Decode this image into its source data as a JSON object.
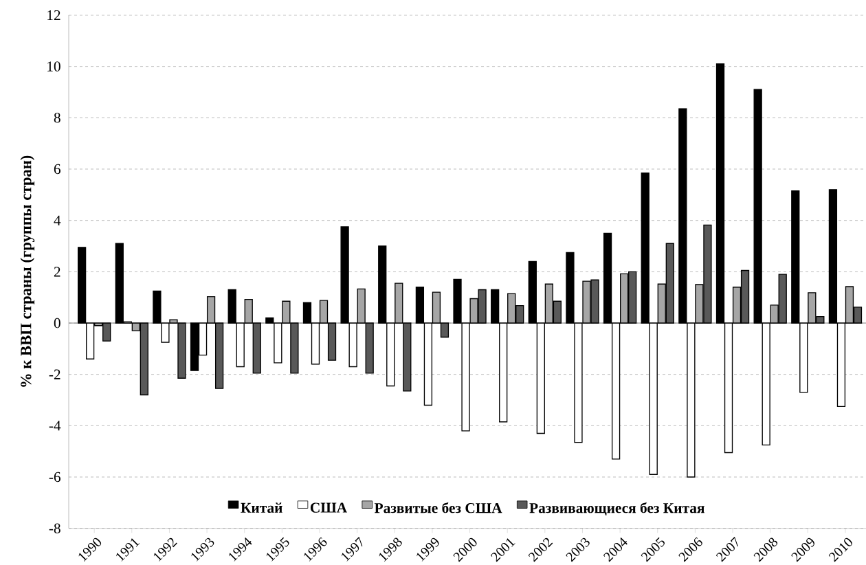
{
  "chart_data": {
    "type": "bar",
    "ylabel": "% к ВВП страны (группы стран)",
    "categories": [
      "1990",
      "1991",
      "1992",
      "1993",
      "1994",
      "1995",
      "1996",
      "1997",
      "1998",
      "1999",
      "2000",
      "2001",
      "2002",
      "2003",
      "2004",
      "2005",
      "2006",
      "2007",
      "2008",
      "2009",
      "2010"
    ],
    "series": [
      {
        "name": "Китай",
        "color": "#000000",
        "values": [
          2.95,
          3.1,
          1.25,
          -1.85,
          1.3,
          0.2,
          0.8,
          3.75,
          3.0,
          1.4,
          1.7,
          1.3,
          2.4,
          2.75,
          3.5,
          5.85,
          8.35,
          10.1,
          9.1,
          5.15,
          5.2
        ]
      },
      {
        "name": "США",
        "color": "#ffffff",
        "values": [
          -1.4,
          0.05,
          -0.75,
          -1.25,
          -1.7,
          -1.55,
          -1.6,
          -1.7,
          -2.45,
          -3.2,
          -4.2,
          -3.85,
          -4.3,
          -4.65,
          -5.3,
          -5.9,
          -6.0,
          -5.05,
          -4.75,
          -2.7,
          -3.25
        ]
      },
      {
        "name": "Развитые без США",
        "color": "#a6a6a6",
        "values": [
          -0.1,
          -0.3,
          0.13,
          1.03,
          0.92,
          0.85,
          0.88,
          1.33,
          1.55,
          1.2,
          0.95,
          1.15,
          1.52,
          1.63,
          1.92,
          1.52,
          1.5,
          1.4,
          0.7,
          1.18,
          1.42
        ]
      },
      {
        "name": "Развивающиеся без Китая",
        "color": "#595959",
        "values": [
          -0.7,
          -2.8,
          -2.15,
          -2.55,
          -1.95,
          -1.95,
          -1.45,
          -1.95,
          -2.65,
          -0.55,
          1.3,
          0.68,
          0.85,
          1.68,
          2.0,
          3.1,
          3.82,
          2.05,
          1.9,
          0.25,
          0.62
        ]
      }
    ],
    "ylim": [
      -8,
      12
    ],
    "yticks": [
      -8,
      -6,
      -4,
      -2,
      0,
      2,
      4,
      6,
      8,
      10,
      12
    ],
    "grid": "y",
    "legend": "bottom"
  }
}
